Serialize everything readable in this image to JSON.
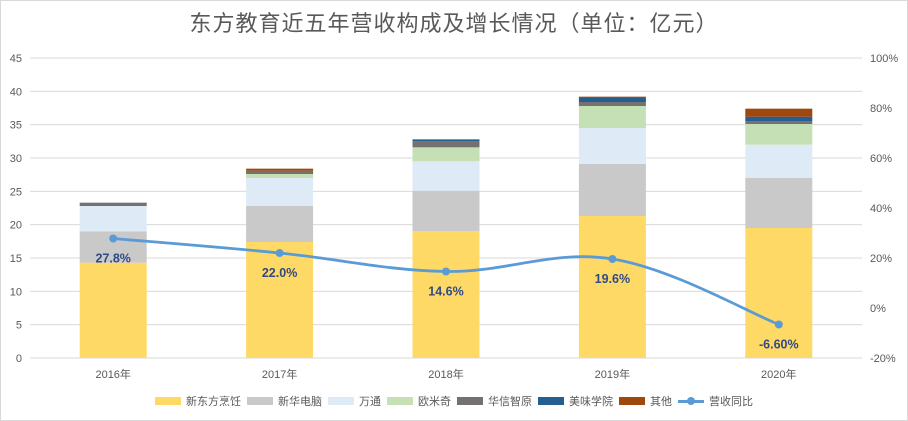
{
  "chart_data": {
    "type": "bar",
    "title": "东方教育近五年营收构成及增长情况（单位：亿元）",
    "categories": [
      "2016年",
      "2017年",
      "2018年",
      "2019年",
      "2020年"
    ],
    "series": [
      {
        "name": "新东方烹饪",
        "color": "#FFD966",
        "values": [
          14.3,
          17.4,
          19.0,
          21.3,
          19.5
        ]
      },
      {
        "name": "新华电脑",
        "color": "#C9C9C9",
        "values": [
          4.7,
          5.4,
          6.1,
          7.8,
          7.5
        ]
      },
      {
        "name": "万通",
        "color": "#DEEAF6",
        "values": [
          3.8,
          4.2,
          4.4,
          5.4,
          5.0
        ]
      },
      {
        "name": "欧米奇",
        "color": "#C5E0B4",
        "values": [
          0.0,
          0.6,
          2.1,
          3.3,
          3.1
        ]
      },
      {
        "name": "华信智原",
        "color": "#767171",
        "values": [
          0.5,
          0.5,
          0.9,
          0.6,
          0.4
        ]
      },
      {
        "name": "美味学院",
        "color": "#255E91",
        "values": [
          0.0,
          0.0,
          0.2,
          0.6,
          0.7
        ]
      },
      {
        "name": "其他",
        "color": "#9E480E",
        "values": [
          0.0,
          0.3,
          0.1,
          0.2,
          1.2
        ]
      }
    ],
    "line_series": {
      "name": "营收同比",
      "color": "#5B9BD5",
      "values": [
        27.8,
        22.0,
        14.6,
        19.6,
        -6.6
      ],
      "labels": [
        "27.8%",
        "22.0%",
        "14.6%",
        "19.6%",
        "-6.60%"
      ],
      "axis": "right"
    },
    "y_left": {
      "ylim": [
        0,
        45
      ],
      "ticks": [
        "0",
        "5",
        "10",
        "15",
        "20",
        "25",
        "30",
        "35",
        "40",
        "45"
      ]
    },
    "y_right": {
      "ylim": [
        -20,
        100
      ],
      "ticks": [
        "-20%",
        "0%",
        "20%",
        "40%",
        "60%",
        "80%",
        "100%"
      ]
    },
    "grid": true,
    "legend_position": "bottom"
  }
}
